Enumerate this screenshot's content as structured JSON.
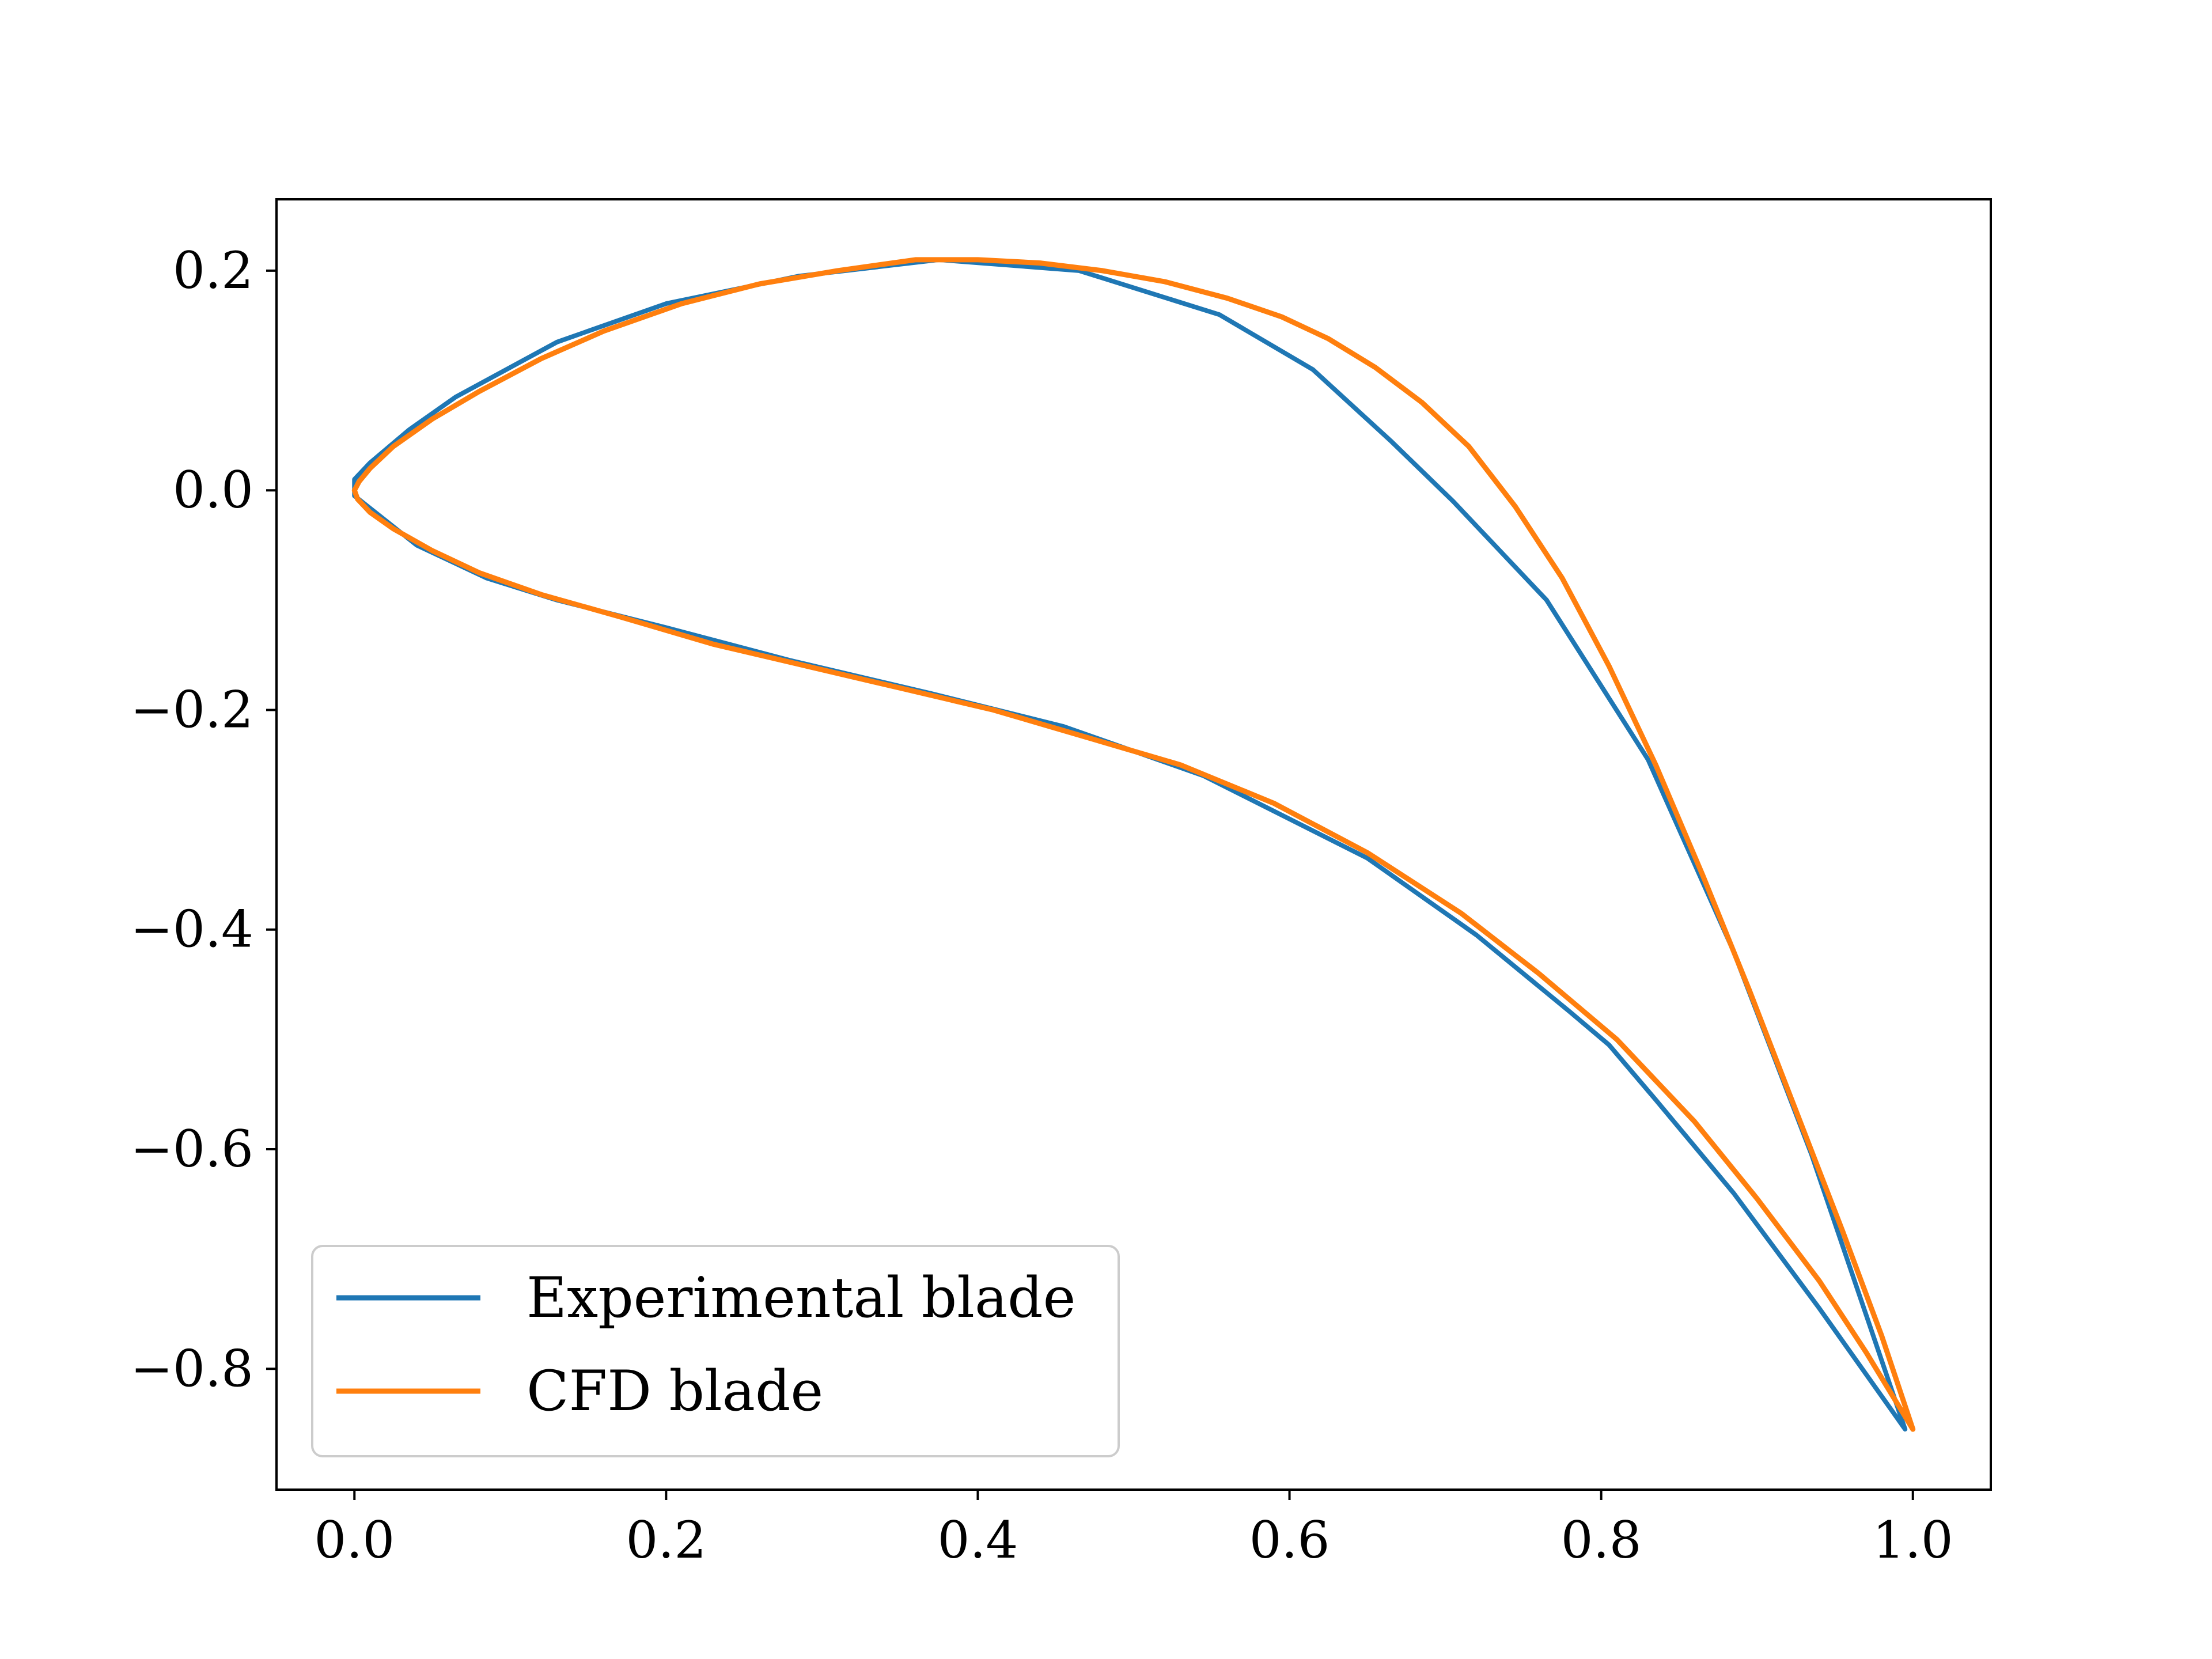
{
  "chart_data": {
    "type": "line",
    "title": "",
    "xlabel": "",
    "ylabel": "",
    "xlim": [
      -0.05,
      1.05
    ],
    "ylim": [
      -0.91,
      0.265
    ],
    "xticks": [
      0.0,
      0.2,
      0.4,
      0.6,
      0.8,
      1.0
    ],
    "yticks": [
      0.2,
      0.0,
      -0.2,
      -0.4,
      -0.6,
      -0.8
    ],
    "xtick_labels": [
      "0.0",
      "0.2",
      "0.4",
      "0.6",
      "0.8",
      "1.0"
    ],
    "ytick_labels": [
      "0.2",
      "0.0",
      "−0.2",
      "−0.4",
      "−0.6",
      "−0.8"
    ],
    "grid": false,
    "legend_position": "lower-left",
    "series": [
      {
        "name": "Experimental blade",
        "color": "#1f77b4",
        "x": [
          0.995,
          0.935,
          0.885,
          0.83,
          0.765,
          0.705,
          0.665,
          0.615,
          0.555,
          0.465,
          0.375,
          0.285,
          0.2,
          0.13,
          0.065,
          0.035,
          0.01,
          0.0,
          0.0,
          0.04,
          0.085,
          0.13,
          0.2,
          0.28,
          0.37,
          0.455,
          0.545,
          0.65,
          0.72,
          0.78,
          0.805,
          0.835,
          0.885,
          0.94,
          0.995
        ],
        "y": [
          -0.855,
          -0.605,
          -0.42,
          -0.245,
          -0.1,
          -0.01,
          0.045,
          0.11,
          0.16,
          0.2,
          0.21,
          0.195,
          0.17,
          0.135,
          0.085,
          0.055,
          0.025,
          0.01,
          -0.005,
          -0.05,
          -0.08,
          -0.1,
          -0.125,
          -0.155,
          -0.185,
          -0.215,
          -0.26,
          -0.335,
          -0.405,
          -0.475,
          -0.505,
          -0.555,
          -0.64,
          -0.745,
          -0.855
        ]
      },
      {
        "name": "CFD blade",
        "color": "#ff7f0e",
        "x": [
          1.0,
          0.98,
          0.955,
          0.925,
          0.895,
          0.865,
          0.835,
          0.805,
          0.775,
          0.745,
          0.715,
          0.685,
          0.655,
          0.625,
          0.595,
          0.56,
          0.52,
          0.48,
          0.44,
          0.4,
          0.36,
          0.31,
          0.26,
          0.21,
          0.16,
          0.12,
          0.08,
          0.05,
          0.025,
          0.01,
          0.003,
          0.0,
          0.002,
          0.01,
          0.025,
          0.05,
          0.08,
          0.12,
          0.17,
          0.23,
          0.29,
          0.35,
          0.41,
          0.47,
          0.53,
          0.59,
          0.65,
          0.71,
          0.76,
          0.81,
          0.86,
          0.9,
          0.94,
          0.97,
          1.0
        ],
        "y": [
          -0.855,
          -0.77,
          -0.675,
          -0.565,
          -0.455,
          -0.35,
          -0.25,
          -0.16,
          -0.08,
          -0.015,
          0.04,
          0.08,
          0.112,
          0.138,
          0.158,
          0.175,
          0.19,
          0.2,
          0.207,
          0.21,
          0.21,
          0.2,
          0.188,
          0.17,
          0.145,
          0.12,
          0.09,
          0.065,
          0.04,
          0.02,
          0.008,
          0.0,
          -0.008,
          -0.02,
          -0.035,
          -0.055,
          -0.075,
          -0.095,
          -0.115,
          -0.14,
          -0.16,
          -0.18,
          -0.2,
          -0.225,
          -0.25,
          -0.285,
          -0.33,
          -0.385,
          -0.44,
          -0.5,
          -0.575,
          -0.645,
          -0.72,
          -0.785,
          -0.855
        ]
      }
    ]
  }
}
